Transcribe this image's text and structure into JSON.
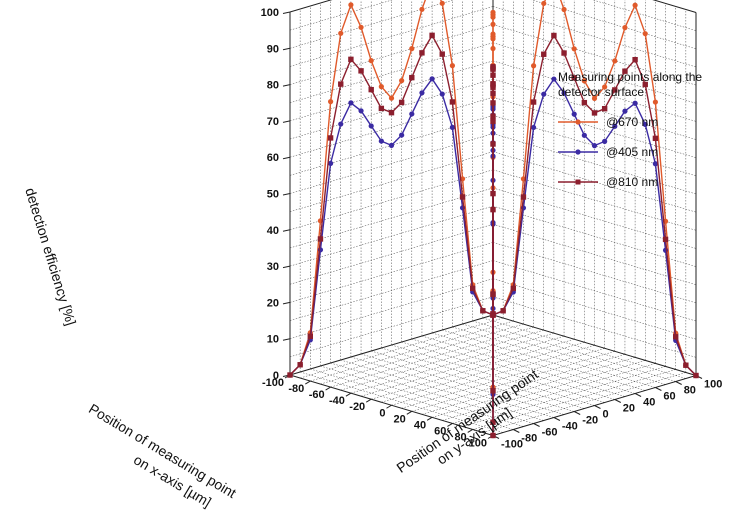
{
  "chart_data": {
    "type": "line3d",
    "zlabel": "detection efficiency [%]",
    "xlabel_line1": "Position of measuring point",
    "xlabel_line2": "on x-axis [µm]",
    "ylabel_line1": "Position of measuring point",
    "ylabel_line2": "on y-axis [µm]",
    "legend_title": "Measuring points along the detector surface",
    "legend_position": "right",
    "grid": true,
    "z_ticks": [
      "0",
      "10",
      "20",
      "30",
      "40",
      "50",
      "60",
      "70",
      "80",
      "90",
      "100"
    ],
    "x_ticks": [
      "-100",
      "-80",
      "-60",
      "-40",
      "-20",
      "0",
      "20",
      "40",
      "60",
      "80",
      "100"
    ],
    "y_ticks": [
      "-100",
      "-80",
      "-60",
      "-40",
      "-20",
      "0",
      "20",
      "40",
      "60",
      "80",
      "100"
    ],
    "xlim": [
      -100,
      100
    ],
    "ylim": [
      -100,
      100
    ],
    "zlim": [
      0,
      100
    ],
    "positions": [
      -100,
      -90,
      -80,
      -70,
      -60,
      -50,
      -40,
      -30,
      -20,
      -10,
      0,
      10,
      20,
      30,
      40,
      50,
      60,
      70,
      80,
      90,
      100
    ],
    "series": [
      {
        "name": "@670 nm",
        "color": "#e05a2b",
        "marker": "circle",
        "x_scan": [
          0,
          2,
          10,
          40,
          72,
          90,
          97,
          90,
          80,
          72,
          68,
          72,
          80,
          90,
          97,
          90,
          72,
          40,
          10,
          2,
          0
        ],
        "y_scan": [
          0,
          2,
          10,
          40,
          72,
          90,
          97,
          90,
          80,
          72,
          68,
          72,
          80,
          90,
          97,
          90,
          72,
          40,
          10,
          2,
          0
        ],
        "diagonal": [
          0,
          2,
          10,
          40,
          70,
          85,
          92,
          95,
          96,
          95,
          94,
          95,
          96,
          95,
          92,
          85,
          70,
          40,
          10,
          2,
          0
        ]
      },
      {
        "name": "@405 nm",
        "color": "#3b2ba3",
        "marker": "circle",
        "x_scan": [
          0,
          2,
          8,
          32,
          55,
          65,
          70,
          67,
          62,
          57,
          55,
          57,
          62,
          67,
          70,
          65,
          55,
          32,
          8,
          2,
          0
        ],
        "y_scan": [
          0,
          2,
          8,
          32,
          55,
          65,
          70,
          67,
          62,
          57,
          55,
          57,
          62,
          67,
          70,
          65,
          55,
          32,
          8,
          2,
          0
        ],
        "diagonal": [
          0,
          2,
          8,
          30,
          52,
          62,
          67,
          69,
          70,
          70,
          69,
          70,
          70,
          69,
          67,
          62,
          52,
          30,
          8,
          2,
          0
        ]
      },
      {
        "name": "@810 nm",
        "color": "#8c1f2e",
        "marker": "square",
        "x_scan": [
          0,
          2,
          9,
          35,
          62,
          76,
          82,
          78,
          72,
          66,
          64,
          66,
          72,
          78,
          82,
          76,
          62,
          35,
          9,
          2,
          0
        ],
        "y_scan": [
          0,
          2,
          9,
          35,
          62,
          76,
          82,
          78,
          72,
          66,
          64,
          66,
          72,
          78,
          82,
          76,
          62,
          35,
          9,
          2,
          0
        ],
        "diagonal": [
          0,
          2,
          9,
          34,
          60,
          72,
          78,
          80,
          81,
          81,
          80,
          81,
          81,
          80,
          78,
          72,
          60,
          34,
          9,
          2,
          0
        ]
      }
    ]
  }
}
